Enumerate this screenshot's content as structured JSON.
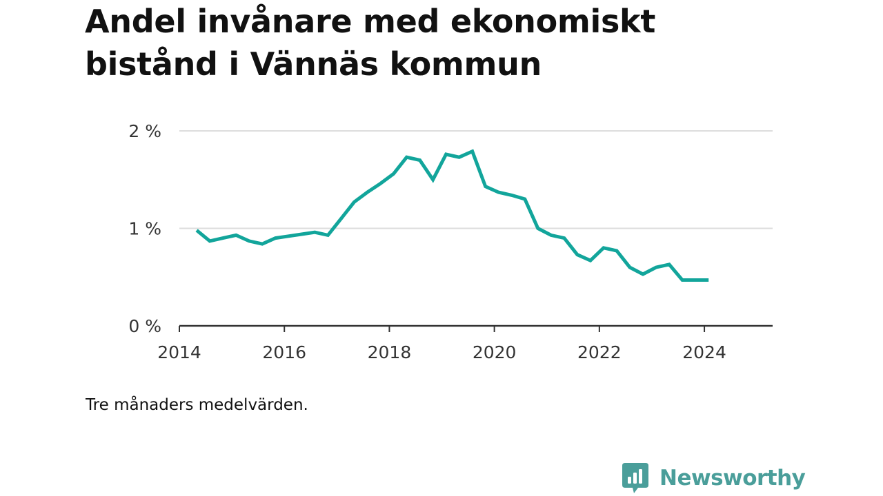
{
  "title": "Andel invånare med ekonomiskt bistånd i Vännäs kommun",
  "note": "Tre månaders medelvärden.",
  "brand": {
    "name": "Newsworthy",
    "color": "#4a9e9a"
  },
  "colors": {
    "line": "#12a59b",
    "grid": "#dddddd",
    "axis": "#333333"
  },
  "chart_data": {
    "type": "line",
    "title": "Andel invånare med ekonomiskt bistånd i Vännäs kommun",
    "subtitle": "",
    "xlabel": "",
    "ylabel": "",
    "xlim": [
      2014.0,
      2025.3
    ],
    "ylim": [
      0,
      2
    ],
    "y_ticks": [
      0,
      1,
      2
    ],
    "y_tick_labels": [
      "0 %",
      "1 %",
      "2 %"
    ],
    "x_ticks": [
      2014,
      2016,
      2018,
      2020,
      2022,
      2024
    ],
    "x_tick_labels": [
      "2014",
      "2016",
      "2018",
      "2020",
      "2022",
      "2024"
    ],
    "grid": true,
    "legend": "none",
    "series": [
      {
        "x": [
          2014.33,
          2014.58,
          2014.83,
          2015.08,
          2015.33,
          2015.58,
          2015.83,
          2016.08,
          2016.33,
          2016.58,
          2016.83,
          2017.08,
          2017.33,
          2017.58,
          2017.83,
          2018.08,
          2018.33,
          2018.58,
          2018.83,
          2019.08,
          2019.33,
          2019.58,
          2019.83,
          2020.08,
          2020.33,
          2020.58,
          2020.83,
          2021.08,
          2021.33,
          2021.58,
          2021.83,
          2022.08,
          2022.33,
          2022.58,
          2022.83,
          2023.08,
          2023.33,
          2023.58,
          2023.83,
          2024.08
        ],
        "values": [
          0.98,
          0.87,
          0.9,
          0.93,
          0.87,
          0.84,
          0.9,
          0.92,
          0.94,
          0.96,
          0.93,
          1.1,
          1.27,
          1.37,
          1.46,
          1.56,
          1.73,
          1.7,
          1.5,
          1.76,
          1.73,
          1.79,
          1.43,
          1.37,
          1.34,
          1.3,
          1.0,
          0.93,
          0.9,
          0.73,
          0.67,
          0.8,
          0.77,
          0.6,
          0.53,
          0.6,
          0.63,
          0.47,
          0.47,
          0.47
        ]
      }
    ]
  }
}
